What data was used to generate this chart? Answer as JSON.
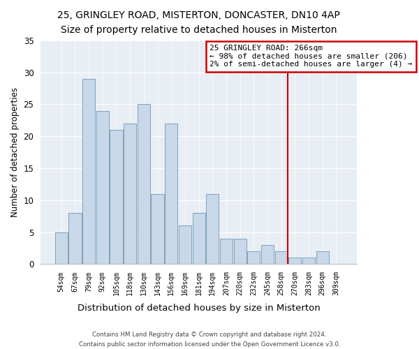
{
  "title": "25, GRINGLEY ROAD, MISTERTON, DONCASTER, DN10 4AP",
  "subtitle": "Size of property relative to detached houses in Misterton",
  "xlabel": "Distribution of detached houses by size in Misterton",
  "ylabel": "Number of detached properties",
  "bar_labels": [
    "54sqm",
    "67sqm",
    "79sqm",
    "92sqm",
    "105sqm",
    "118sqm",
    "130sqm",
    "143sqm",
    "156sqm",
    "169sqm",
    "181sqm",
    "194sqm",
    "207sqm",
    "220sqm",
    "232sqm",
    "245sqm",
    "258sqm",
    "270sqm",
    "283sqm",
    "296sqm",
    "309sqm"
  ],
  "bar_values": [
    5,
    8,
    29,
    24,
    21,
    22,
    25,
    11,
    22,
    6,
    8,
    11,
    4,
    4,
    2,
    3,
    2,
    1,
    1,
    2,
    0
  ],
  "bar_color": "#c8d8e8",
  "bar_edge_color": "#7ca0c0",
  "ylim": [
    0,
    35
  ],
  "yticks": [
    0,
    5,
    10,
    15,
    20,
    25,
    30,
    35
  ],
  "vline_index": 16.5,
  "vline_color": "#cc0000",
  "annotation_title": "25 GRINGLEY ROAD: 266sqm",
  "annotation_line1": "← 98% of detached houses are smaller (206)",
  "annotation_line2": "2% of semi-detached houses are larger (4) →",
  "annotation_box_color": "#ffffff",
  "annotation_box_edge": "#cc0000",
  "footer_line1": "Contains HM Land Registry data © Crown copyright and database right 2024.",
  "footer_line2": "Contains public sector information licensed under the Open Government Licence v3.0.",
  "background_color": "#ffffff",
  "plot_background": "#e8eef4",
  "grid_color": "#ffffff"
}
